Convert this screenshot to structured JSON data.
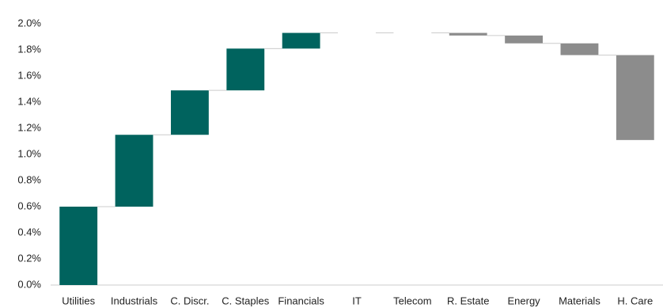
{
  "chart_data": {
    "type": "waterfall",
    "categories": [
      "Utilities",
      "Industrials",
      "C. Discr.",
      "C. Staples",
      "Financials",
      "IT",
      "Telecom",
      "R. Estate",
      "Energy",
      "Materials",
      "H. Care"
    ],
    "values": [
      0.6,
      0.55,
      0.34,
      0.32,
      0.12,
      0,
      0,
      -0.02,
      -0.06,
      -0.09,
      -0.65
    ],
    "color_increase": "#00635e",
    "color_decrease": "#8c8c8c",
    "ylim": [
      0,
      2.0
    ],
    "yticks": [
      {
        "value": 0,
        "label": "0.0%"
      },
      {
        "value": 0.2,
        "label": "0.2%"
      },
      {
        "value": 0.4,
        "label": "0.4%"
      },
      {
        "value": 0.6,
        "label": "0.6%"
      },
      {
        "value": 0.8,
        "label": "0.8%"
      },
      {
        "value": 1.0,
        "label": "1.0%"
      },
      {
        "value": 1.2,
        "label": "1.2%"
      },
      {
        "value": 1.4,
        "label": "1.4%"
      },
      {
        "value": 1.6,
        "label": "1.6%"
      },
      {
        "value": 1.8,
        "label": "1.8%"
      },
      {
        "value": 2.0,
        "label": "2.0%"
      }
    ],
    "grid": false
  }
}
